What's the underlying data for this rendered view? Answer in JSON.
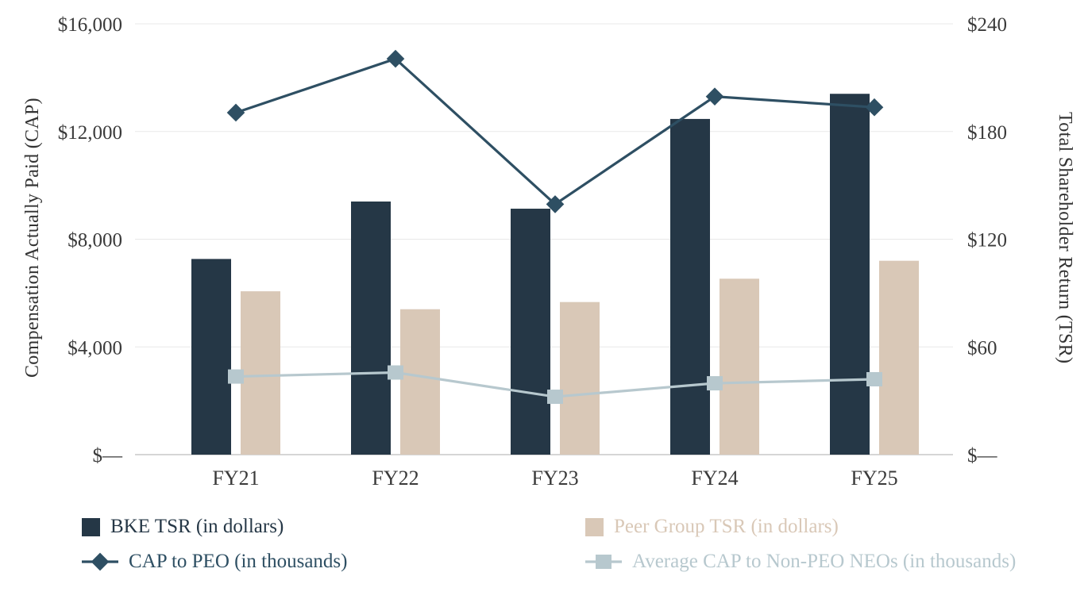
{
  "chart_data": {
    "type": "bar",
    "subtype": "combo-bar-line-dual-axis",
    "categories": [
      "FY21",
      "FY22",
      "FY23",
      "FY24",
      "FY25"
    ],
    "series": [
      {
        "name": "BKE TSR (in dollars)",
        "type": "bar",
        "axis": "right",
        "color": "#253746",
        "values": [
          109,
          141,
          137,
          187,
          201
        ]
      },
      {
        "name": "Peer Group TSR (in dollars)",
        "type": "bar",
        "axis": "right",
        "color": "#d9c8b7",
        "values": [
          91,
          81,
          85,
          98,
          108
        ]
      },
      {
        "name": "CAP to PEO (in thousands)",
        "type": "line",
        "marker": "diamond",
        "axis": "left",
        "color": "#2e4f63",
        "values": [
          12700,
          14700,
          9300,
          13300,
          12900
        ]
      },
      {
        "name": "Average CAP to Non-PEO NEOs (in thousands)",
        "type": "line",
        "marker": "square",
        "axis": "left",
        "color": "#b7c8ce",
        "values": [
          2900,
          3050,
          2150,
          2650,
          2800
        ]
      }
    ],
    "left_axis": {
      "title": "Compensation Actually Paid (CAP)",
      "ticks": [
        "$16,000",
        "$12,000",
        "$8,000",
        "$4,000",
        "$—"
      ],
      "range": [
        0,
        16000
      ]
    },
    "right_axis": {
      "title": "Total Shareholder Return (TSR)",
      "ticks": [
        "$240",
        "$180",
        "$120",
        "$60",
        "$—"
      ],
      "range": [
        0,
        240
      ]
    },
    "grid": true,
    "legend_position": "bottom"
  }
}
